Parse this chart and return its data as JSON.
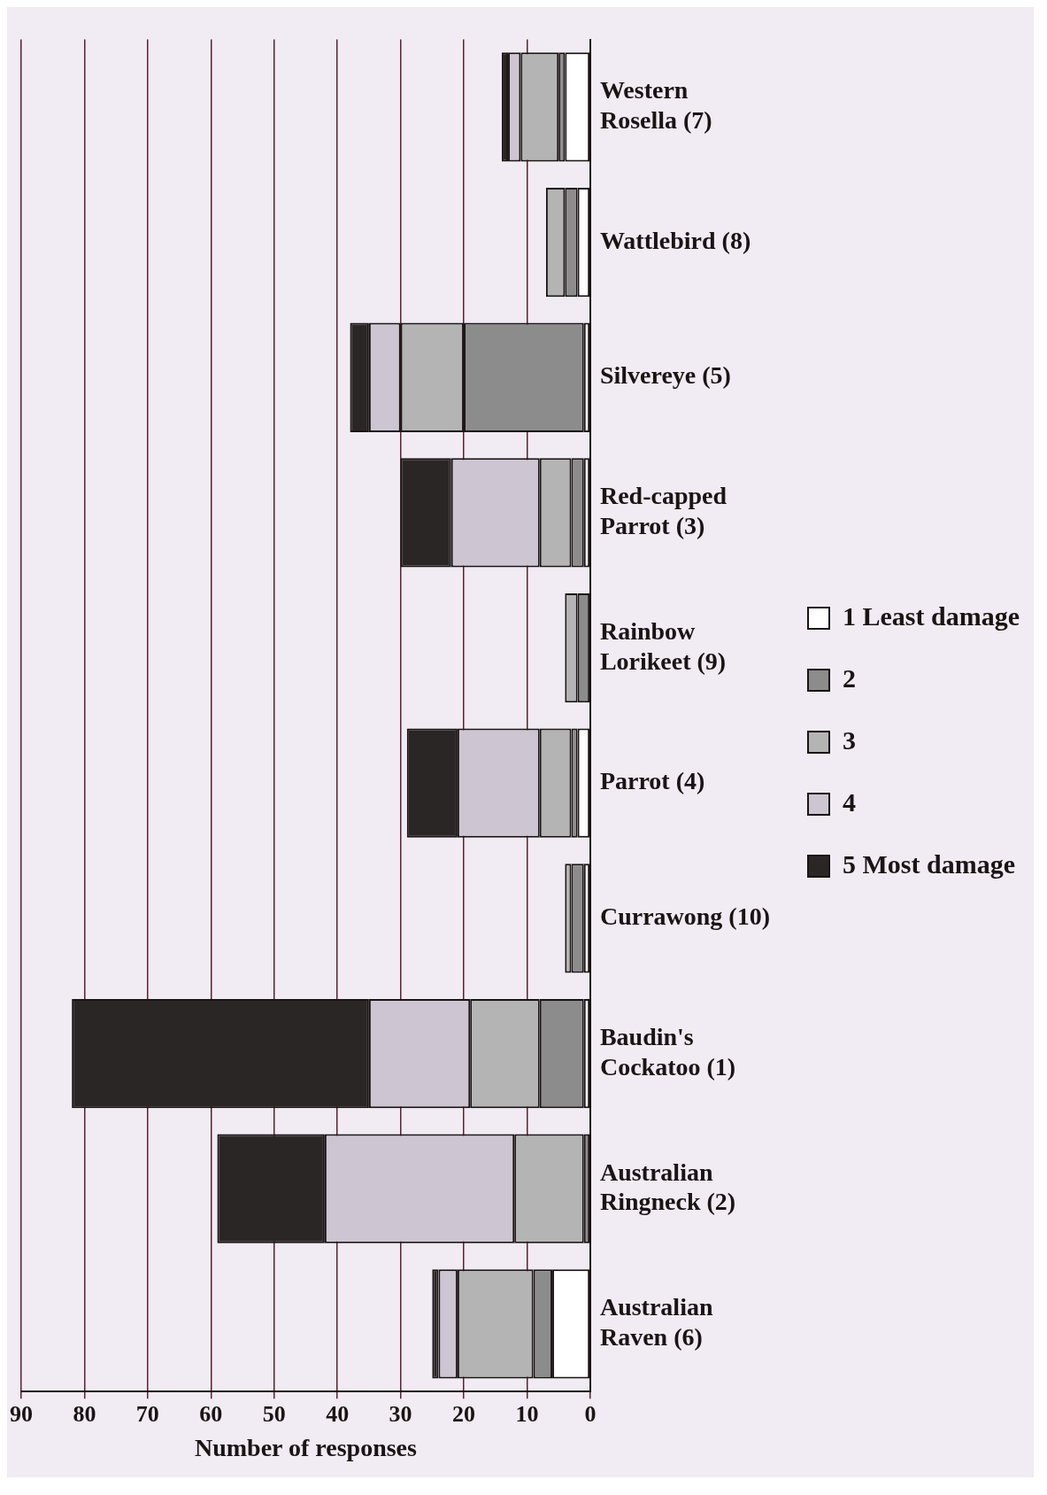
{
  "chart_data": {
    "type": "bar",
    "orientation": "horizontal",
    "stacked": true,
    "xlabel": "Number of responses",
    "categories": [
      "Western Rosella (7)",
      "Wattlebird (8)",
      "Silvereye (5)",
      "Red-capped Parrot (3)",
      "Rainbow Lorikeet (9)",
      "Parrot (4)",
      "Currawong (10)",
      "Baudin's Cockatoo (1)",
      "Australian Ringneck (2)",
      "Australian Raven (6)"
    ],
    "series": [
      {
        "name": "1 Least damage",
        "color": "#ffffff",
        "values": [
          4,
          2,
          1,
          1,
          0,
          2,
          1,
          1,
          0,
          6
        ]
      },
      {
        "name": "2",
        "color": "#8c8c8c",
        "values": [
          1,
          2,
          19,
          2,
          2,
          1,
          2,
          7,
          1,
          3
        ]
      },
      {
        "name": "3",
        "color": "#b4b4b4",
        "values": [
          6,
          3,
          10,
          5,
          2,
          5,
          1,
          11,
          11,
          12
        ]
      },
      {
        "name": "4",
        "color": "#cdc6d2",
        "values": [
          2,
          0,
          5,
          14,
          0,
          13,
          0,
          16,
          30,
          3
        ]
      },
      {
        "name": "5 Most damage",
        "color": "#2b2626",
        "values": [
          1,
          0,
          3,
          8,
          0,
          8,
          0,
          47,
          17,
          1
        ]
      }
    ],
    "xlim": [
      90,
      0
    ],
    "xticks": [
      90,
      80,
      70,
      60,
      50,
      40,
      30,
      20,
      10,
      0
    ],
    "grid": "x",
    "legend": "right"
  }
}
